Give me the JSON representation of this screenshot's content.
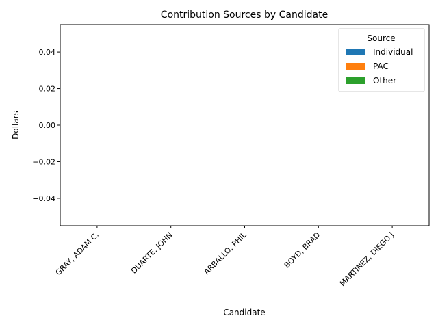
{
  "chart_data": {
    "type": "bar",
    "title": "Contribution Sources by Candidate",
    "xlabel": "Candidate",
    "ylabel": "Dollars",
    "categories": [
      "GRAY, ADAM C.",
      "DUARTE, JOHN",
      "ARBALLO, PHIL",
      "BOYD, BRAD",
      "MARTINEZ, DIEGO J"
    ],
    "series": [
      {
        "name": "Individual",
        "values": [
          0,
          0,
          0,
          0,
          0
        ],
        "color": "#1f77b4"
      },
      {
        "name": "PAC",
        "values": [
          0,
          0,
          0,
          0,
          0
        ],
        "color": "#ff7f0e"
      },
      {
        "name": "Other",
        "values": [
          0,
          0,
          0,
          0,
          0
        ],
        "color": "#2ca02c"
      }
    ],
    "ylim": [
      -0.055,
      0.055
    ],
    "yticks": [
      -0.04,
      -0.02,
      0.0,
      0.02,
      0.04
    ],
    "ytick_labels": [
      "−0.04",
      "−0.02",
      "0.00",
      "0.02",
      "0.04"
    ],
    "legend": {
      "title": "Source",
      "placement": "top-right"
    },
    "grid": false
  }
}
